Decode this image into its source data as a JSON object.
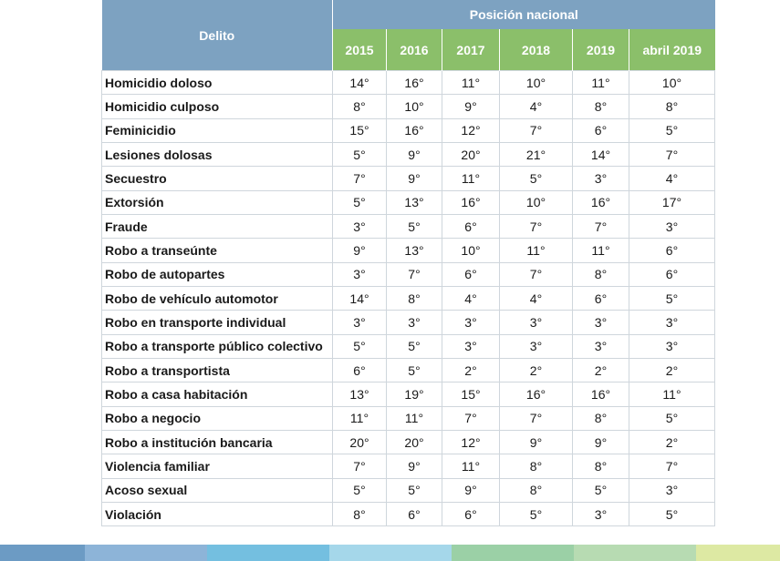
{
  "header": {
    "delito_label": "Delito",
    "posicion_label": "Posición nacional",
    "years": [
      "2015",
      "2016",
      "2017",
      "2018",
      "2019",
      "abril 2019"
    ]
  },
  "rows": [
    {
      "crime": "Homicidio doloso",
      "values": [
        "14°",
        "16°",
        "11°",
        "10°",
        "11°",
        "10°"
      ]
    },
    {
      "crime": "Homicidio culposo",
      "values": [
        "8°",
        "10°",
        "9°",
        "4°",
        "8°",
        "8°"
      ]
    },
    {
      "crime": "Feminicidio",
      "values": [
        "15°",
        "16°",
        "12°",
        "7°",
        "6°",
        "5°"
      ]
    },
    {
      "crime": "Lesiones dolosas",
      "values": [
        "5°",
        "9°",
        "20°",
        "21°",
        "14°",
        "7°"
      ]
    },
    {
      "crime": "Secuestro",
      "values": [
        "7°",
        "9°",
        "11°",
        "5°",
        "3°",
        "4°"
      ]
    },
    {
      "crime": "Extorsión",
      "values": [
        "5°",
        "13°",
        "16°",
        "10°",
        "16°",
        "17°"
      ]
    },
    {
      "crime": "Fraude",
      "values": [
        "3°",
        "5°",
        "6°",
        "7°",
        "7°",
        "3°"
      ]
    },
    {
      "crime": "Robo a transeúnte",
      "values": [
        "9°",
        "13°",
        "10°",
        "11°",
        "11°",
        "6°"
      ]
    },
    {
      "crime": "Robo de autopartes",
      "values": [
        "3°",
        "7°",
        "6°",
        "7°",
        "8°",
        "6°"
      ]
    },
    {
      "crime": "Robo de vehículo automotor",
      "values": [
        "14°",
        "8°",
        "4°",
        "4°",
        "6°",
        "5°"
      ]
    },
    {
      "crime": "Robo en transporte individual",
      "values": [
        "3°",
        "3°",
        "3°",
        "3°",
        "3°",
        "3°"
      ]
    },
    {
      "crime": "Robo a transporte público colectivo",
      "values": [
        "5°",
        "5°",
        "3°",
        "3°",
        "3°",
        "3°"
      ]
    },
    {
      "crime": "Robo a transportista",
      "values": [
        "6°",
        "5°",
        "2°",
        "2°",
        "2°",
        "2°"
      ]
    },
    {
      "crime": "Robo a casa habitación",
      "values": [
        "13°",
        "19°",
        "15°",
        "16°",
        "16°",
        "11°"
      ]
    },
    {
      "crime": "Robo a negocio",
      "values": [
        "11°",
        "11°",
        "7°",
        "7°",
        "8°",
        "5°"
      ]
    },
    {
      "crime": "Robo a institución bancaria",
      "values": [
        "20°",
        "20°",
        "12°",
        "9°",
        "9°",
        "2°"
      ]
    },
    {
      "crime": "Violencia familiar",
      "values": [
        "7°",
        "9°",
        "11°",
        "8°",
        "8°",
        "7°"
      ]
    },
    {
      "crime": "Acoso sexual",
      "values": [
        "5°",
        "5°",
        "9°",
        "8°",
        "5°",
        "3°"
      ]
    },
    {
      "crime": "Violación",
      "values": [
        "8°",
        "6°",
        "6°",
        "5°",
        "3°",
        "5°"
      ]
    }
  ],
  "colors": {
    "header_blue": "#7da2c1",
    "header_green": "#8bbf6a",
    "footer_stripes": [
      "#6c9bc4",
      "#8db4d8",
      "#74bfe0",
      "#a5d7ea",
      "#9bd0a6",
      "#b7dbb2",
      "#dde9a3"
    ]
  }
}
